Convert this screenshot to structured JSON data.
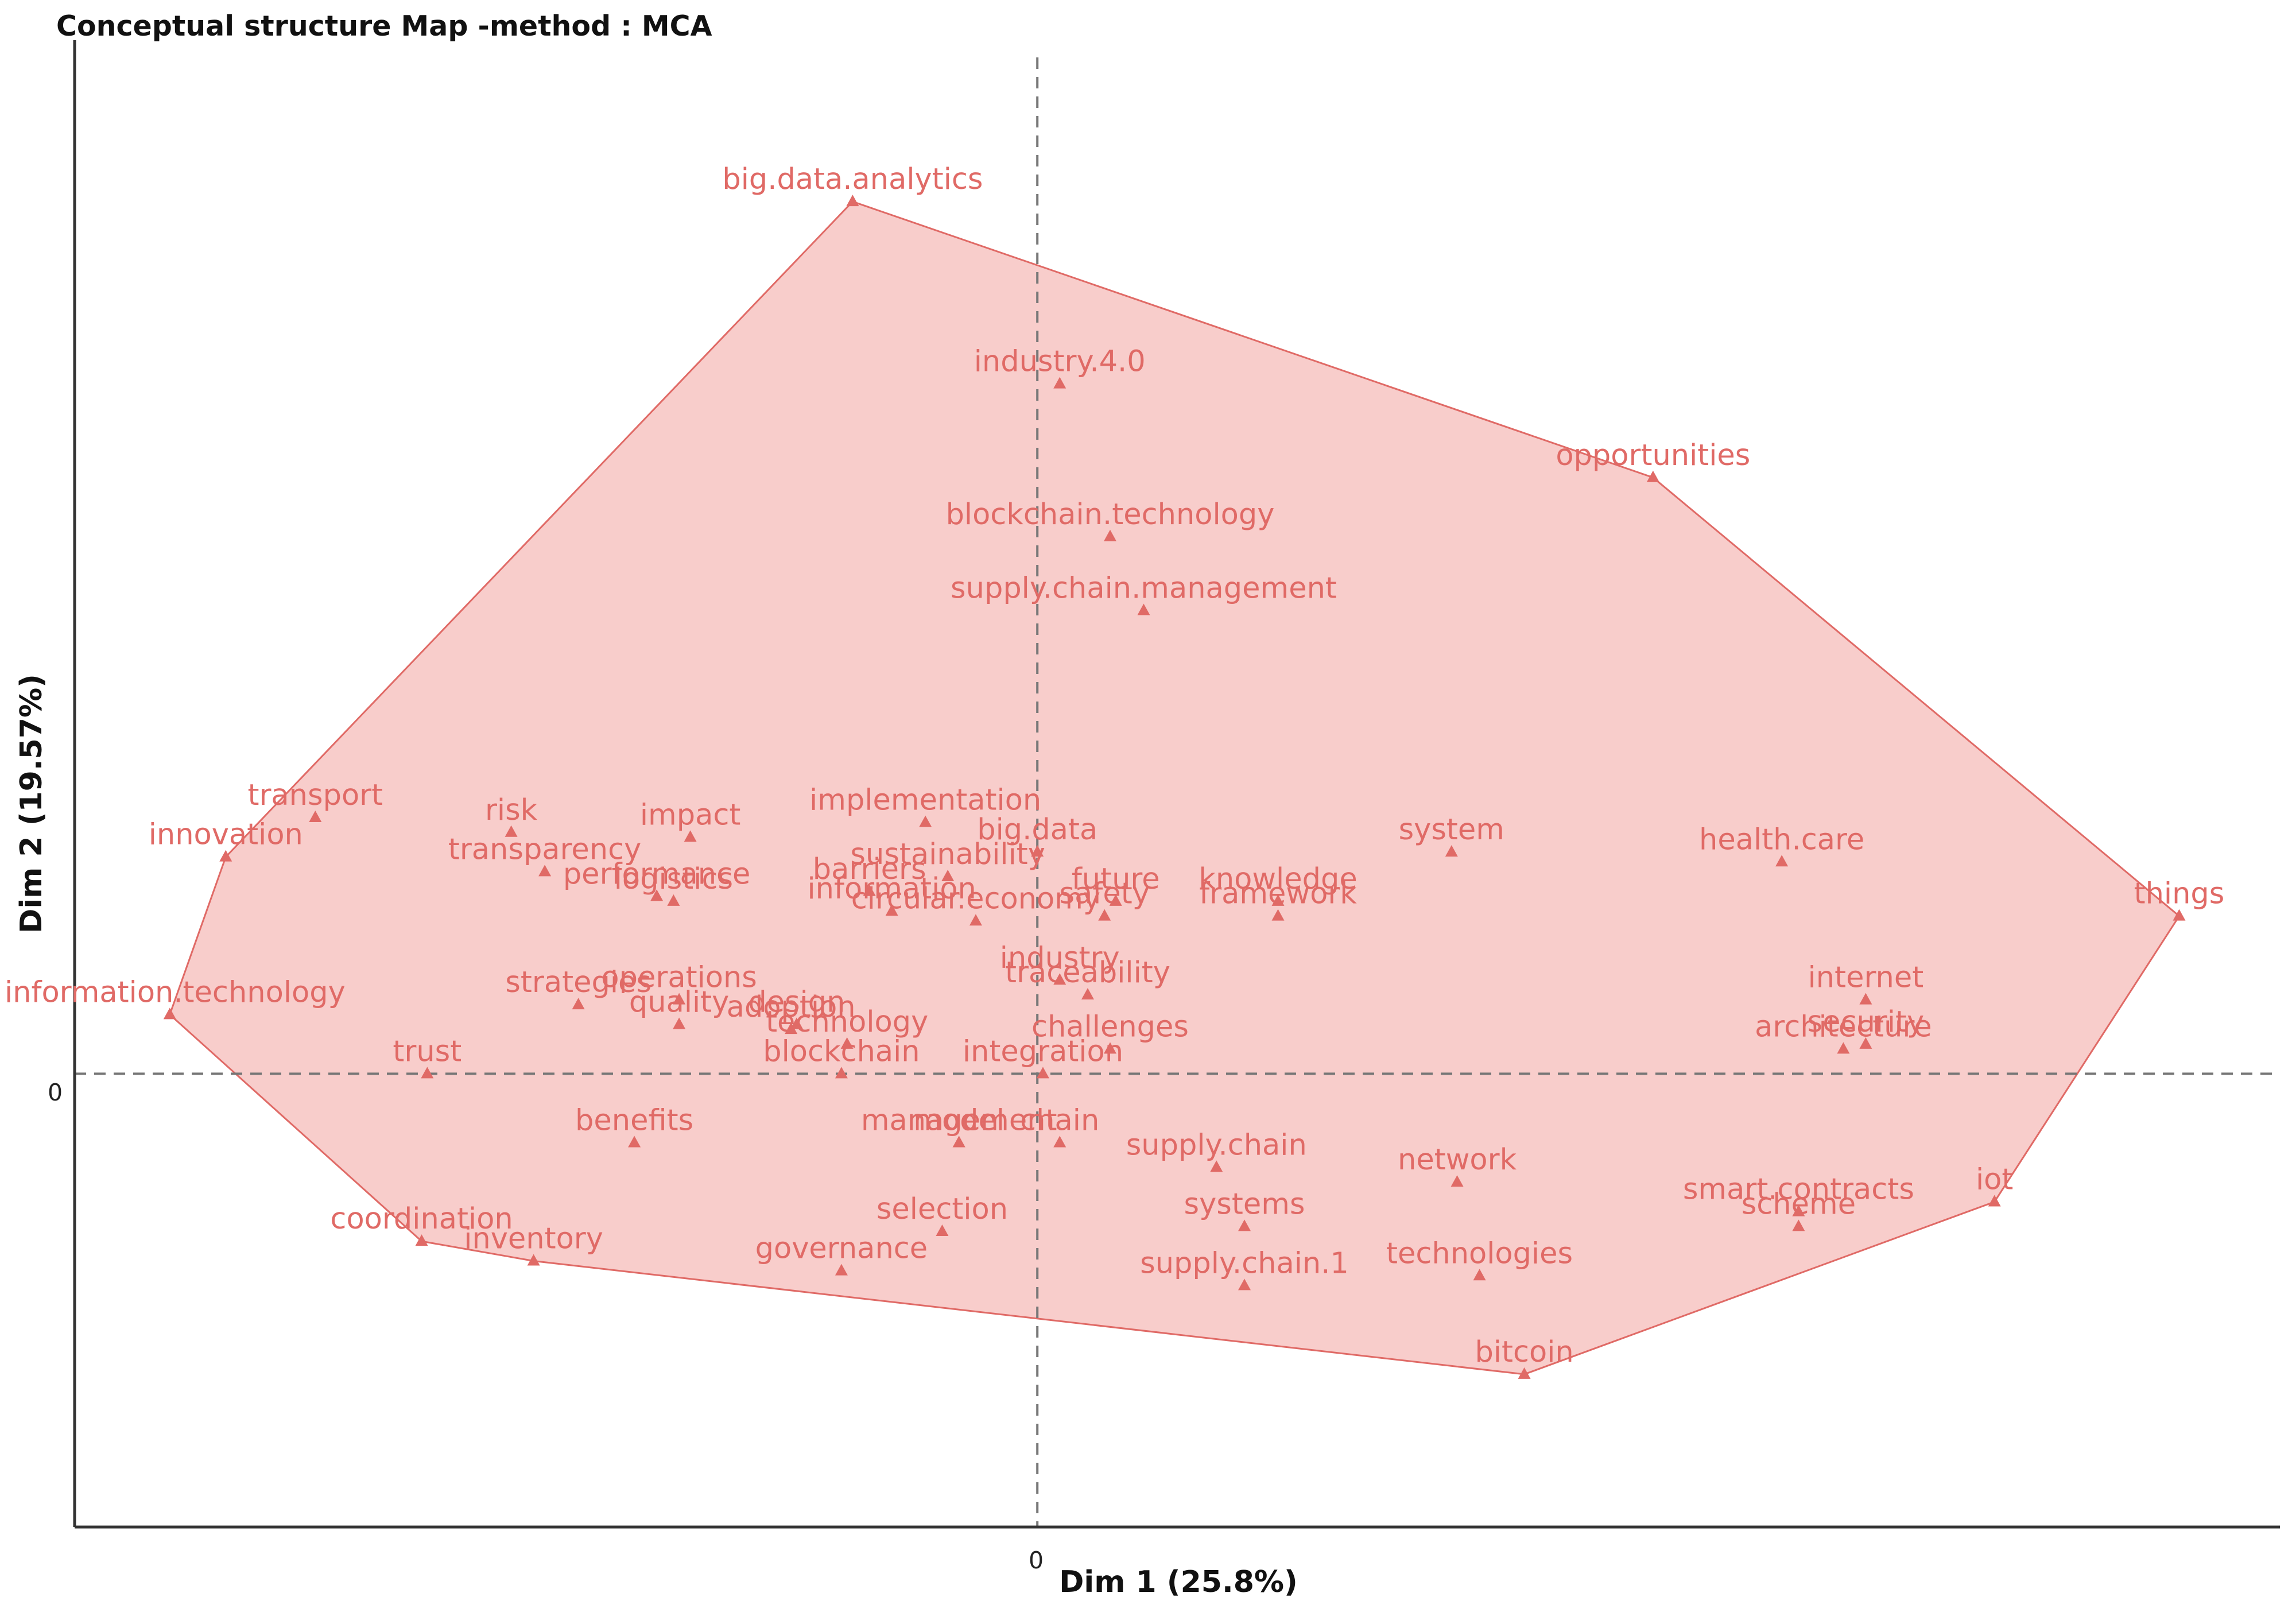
{
  "colors": {
    "hull_fill": "#f7c4c2",
    "hull_stroke": "#e06a66",
    "points": "#e06a66",
    "labels": "#e06a66",
    "axes": "#333333",
    "zero_lines": "#777777"
  },
  "chart_data": {
    "type": "scatter",
    "title": "Conceptual structure Map -method : MCA",
    "xlabel": "Dim 1 (25.8%)",
    "ylabel": "Dim 2 (19.57%)",
    "x_ticks": [
      "0"
    ],
    "y_ticks": [
      "0"
    ],
    "xlim": [
      -1.72,
      2.22
    ],
    "ylim": [
      -0.92,
      2.08
    ],
    "grid": false,
    "zero_lines": "dashed",
    "convex_hull": true,
    "points": [
      {
        "label": "big.data.analytics",
        "x": -0.33,
        "y": 1.77
      },
      {
        "label": "industry.4.0",
        "x": 0.04,
        "y": 1.4
      },
      {
        "label": "opportunities",
        "x": 1.1,
        "y": 1.21
      },
      {
        "label": "blockchain.technology",
        "x": 0.13,
        "y": 1.09
      },
      {
        "label": "supply.chain.management",
        "x": 0.19,
        "y": 0.94
      },
      {
        "label": "transport",
        "x": -1.29,
        "y": 0.52
      },
      {
        "label": "risk",
        "x": -0.94,
        "y": 0.49
      },
      {
        "label": "impact",
        "x": -0.62,
        "y": 0.48
      },
      {
        "label": "implementation",
        "x": -0.2,
        "y": 0.51
      },
      {
        "label": "innovation",
        "x": -1.45,
        "y": 0.44
      },
      {
        "label": "transparency",
        "x": -0.88,
        "y": 0.41
      },
      {
        "label": "sustainability",
        "x": -0.16,
        "y": 0.4
      },
      {
        "label": "big.data",
        "x": 0.0,
        "y": 0.45
      },
      {
        "label": "system",
        "x": 0.74,
        "y": 0.45
      },
      {
        "label": "health.care",
        "x": 1.33,
        "y": 0.43
      },
      {
        "label": "things",
        "x": 2.04,
        "y": 0.32
      },
      {
        "label": "performance",
        "x": -0.68,
        "y": 0.36
      },
      {
        "label": "barriers",
        "x": -0.3,
        "y": 0.37
      },
      {
        "label": "circular.economy",
        "x": -0.11,
        "y": 0.31
      },
      {
        "label": "knowledge",
        "x": 0.43,
        "y": 0.35
      },
      {
        "label": "framework",
        "x": 0.43,
        "y": 0.32
      },
      {
        "label": "logistics",
        "x": -0.65,
        "y": 0.35
      },
      {
        "label": "safety",
        "x": 0.12,
        "y": 0.32
      },
      {
        "label": "future",
        "x": 0.14,
        "y": 0.35
      },
      {
        "label": "information",
        "x": -0.26,
        "y": 0.33
      },
      {
        "label": "internet",
        "x": 1.48,
        "y": 0.15
      },
      {
        "label": "security",
        "x": 1.48,
        "y": 0.06
      },
      {
        "label": "strategies",
        "x": -0.82,
        "y": 0.14
      },
      {
        "label": "operations",
        "x": -0.64,
        "y": 0.15
      },
      {
        "label": "traceability",
        "x": 0.09,
        "y": 0.16
      },
      {
        "label": "design",
        "x": -0.43,
        "y": 0.1
      },
      {
        "label": "industry",
        "x": 0.04,
        "y": 0.19
      },
      {
        "label": "quality",
        "x": -0.64,
        "y": 0.1
      },
      {
        "label": "adoption",
        "x": -0.44,
        "y": 0.09
      },
      {
        "label": "technology",
        "x": -0.34,
        "y": 0.06
      },
      {
        "label": "challenges",
        "x": 0.13,
        "y": 0.05
      },
      {
        "label": "information.technology",
        "x": -1.55,
        "y": 0.12
      },
      {
        "label": "architecture",
        "x": 1.44,
        "y": 0.05
      },
      {
        "label": "trust",
        "x": -1.09,
        "y": 0.0
      },
      {
        "label": "blockchain",
        "x": -0.35,
        "y": 0.0
      },
      {
        "label": "integration",
        "x": 0.01,
        "y": 0.0
      },
      {
        "label": "benefits",
        "x": -0.72,
        "y": -0.14
      },
      {
        "label": "management",
        "x": -0.14,
        "y": -0.14
      },
      {
        "label": "model",
        "x": -0.14,
        "y": -0.14
      },
      {
        "label": "chain",
        "x": 0.04,
        "y": -0.14
      },
      {
        "label": "supply.chain",
        "x": 0.32,
        "y": -0.19
      },
      {
        "label": "network",
        "x": 0.75,
        "y": -0.22
      },
      {
        "label": "smart.contracts",
        "x": 1.36,
        "y": -0.28
      },
      {
        "label": "iot",
        "x": 1.71,
        "y": -0.26
      },
      {
        "label": "coordination",
        "x": -1.1,
        "y": -0.34
      },
      {
        "label": "selection",
        "x": -0.17,
        "y": -0.32
      },
      {
        "label": "scheme",
        "x": 1.36,
        "y": -0.31
      },
      {
        "label": "systems",
        "x": 0.37,
        "y": -0.31
      },
      {
        "label": "technologies",
        "x": 0.79,
        "y": -0.41
      },
      {
        "label": "governance",
        "x": -0.35,
        "y": -0.4
      },
      {
        "label": "inventory",
        "x": -0.9,
        "y": -0.38
      },
      {
        "label": "supply.chain.1",
        "x": 0.37,
        "y": -0.43
      },
      {
        "label": "bitcoin",
        "x": 0.87,
        "y": -0.61
      }
    ]
  }
}
